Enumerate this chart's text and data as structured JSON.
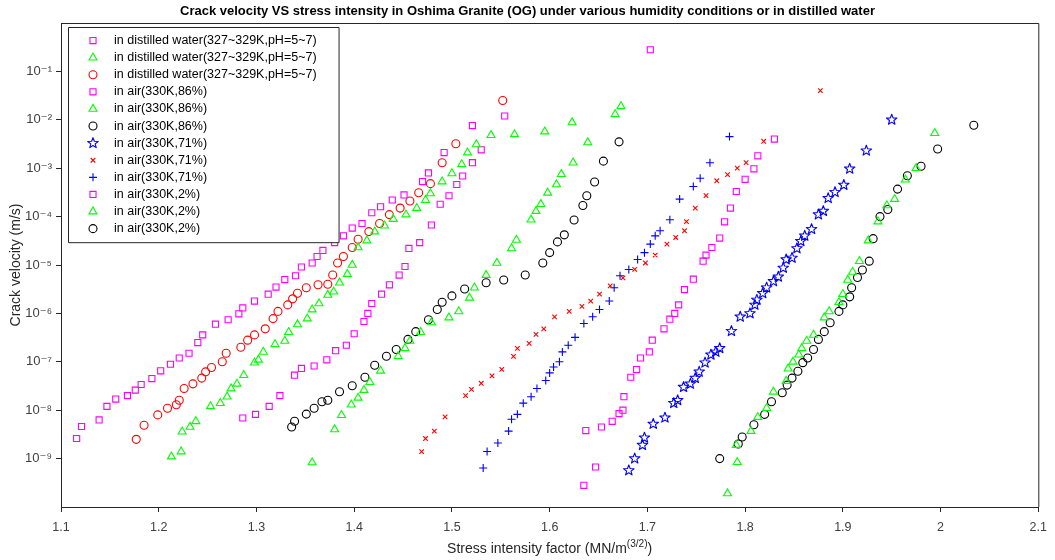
{
  "chart_data": {
    "type": "scatter",
    "title": "Crack velocity VS stress intensity in Oshima Granite (OG) under various humidity conditions or in distilled water",
    "xlabel": "Stress intensity factor (MN/m$^{(3/2)}$)",
    "ylabel": "Crack velocity (m/s)",
    "log": "y",
    "legend": "top left",
    "xlim": [
      1.1,
      2.1
    ],
    "xticks": [
      1.1,
      1.2,
      1.3,
      1.4,
      1.5,
      1.6,
      1.7,
      1.8,
      1.9,
      {
        "value": 2,
        "label": "2"
      },
      2.1
    ],
    "ylim": [
      1e-10,
      1
    ],
    "yticks": [
      {
        "value": 1e-09,
        "label": "10⁻⁹"
      },
      {
        "value": 1e-08,
        "label": "10⁻⁸"
      },
      {
        "value": 1e-07,
        "label": "10⁻⁷"
      },
      {
        "value": 1e-06,
        "label": "10⁻⁶"
      },
      {
        "value": 1e-05,
        "label": "10⁻⁵"
      },
      {
        "value": 0.0001,
        "label": "10⁻⁴"
      },
      {
        "value": 0.001,
        "label": "10⁻³"
      },
      {
        "value": 0.01,
        "label": "10⁻²"
      },
      {
        "value": 0.1,
        "label": "10⁻¹"
      }
    ],
    "series": [
      {
        "name": "in distilled water(327~329K,pH=5~7)",
        "color": "#ff00ff",
        "marker": "square",
        "x": [
          1.116,
          1.121,
          1.139,
          1.147,
          1.156,
          1.168,
          1.176,
          1.182,
          1.193,
          1.202,
          1.212,
          1.221,
          1.231,
          1.24,
          1.245,
          1.258,
          1.271,
          1.282,
          1.286,
          1.298,
          1.312,
          1.32,
          1.329,
          1.34,
          1.346,
          1.357,
          1.362,
          1.368,
          1.38,
          1.389,
          1.398,
          1.408,
          1.418,
          1.427,
          1.439,
          1.451,
          1.47,
          1.476,
          1.492,
          1.521
        ],
        "values": [
          2.6e-09,
          4.6e-09,
          6.3e-09,
          1.2e-08,
          1.7e-08,
          2e-08,
          2.6e-08,
          3.4e-08,
          4.5e-08,
          6.5e-08,
          8.9e-08,
          1.2e-07,
          1.5e-07,
          2.5e-07,
          3.6e-07,
          6e-07,
          7.4e-07,
          9.8e-07,
          1.3e-06,
          1.8e-06,
          2.5e-06,
          3.5e-06,
          5e-06,
          6e-06,
          9.1e-06,
          1.1e-05,
          1.5e-05,
          2e-05,
          2.9e-05,
          4e-05,
          5.8e-05,
          7.2e-05,
          0.00012,
          0.00016,
          0.00022,
          0.00028,
          0.00053,
          0.0008,
          0.0021,
          0.0076
        ]
      },
      {
        "name": "in distilled water(327~329K,pH=5~7)",
        "color": "#00ff00",
        "marker": "triangle",
        "x": [
          1.213,
          1.223,
          1.224,
          1.232,
          1.238,
          1.253,
          1.263,
          1.27,
          1.274,
          1.28,
          1.287,
          1.298,
          1.302,
          1.307,
          1.319,
          1.329,
          1.333,
          1.342,
          1.352,
          1.357,
          1.364,
          1.373,
          1.379,
          1.385,
          1.393,
          1.398,
          1.404,
          1.413,
          1.421,
          1.431,
          1.44,
          1.453,
          1.464,
          1.473,
          1.478,
          1.49,
          1.5,
          1.51,
          1.516,
          1.525,
          1.54,
          1.564,
          1.595
        ],
        "values": [
          1.1e-09,
          1.4e-09,
          3.6e-09,
          4.5e-09,
          5.9e-09,
          1.2e-08,
          1.4e-08,
          1.9e-08,
          2.8e-08,
          3.5e-08,
          5.3e-08,
          9.6e-08,
          1.1e-07,
          1.6e-07,
          2.3e-07,
          2.7e-07,
          4.1e-07,
          5.9e-07,
          7.8e-07,
          1.2e-06,
          1.6e-06,
          2.4e-06,
          2.8e-06,
          4.3e-06,
          6.5e-06,
          1e-05,
          2.3e-05,
          3.2e-05,
          4.9e-05,
          6.5e-05,
          8.9e-05,
          0.00011,
          0.00015,
          0.00022,
          0.0003,
          0.00053,
          0.00078,
          0.0012,
          0.0021,
          0.0031,
          0.0048,
          0.005,
          0.0057
        ]
      },
      {
        "name": "in distilled water(327~329K,pH=5~7)",
        "color": "#ff0000",
        "marker": "circle",
        "x": [
          1.177,
          1.185,
          1.199,
          1.209,
          1.218,
          1.221,
          1.226,
          1.235,
          1.244,
          1.248,
          1.254,
          1.265,
          1.269,
          1.284,
          1.291,
          1.298,
          1.309,
          1.317,
          1.322,
          1.332,
          1.337,
          1.342,
          1.351,
          1.363,
          1.373,
          1.378,
          1.383,
          1.389,
          1.398,
          1.404,
          1.415,
          1.426,
          1.436,
          1.447,
          1.457,
          1.466,
          1.478,
          1.49,
          1.504,
          1.552
        ],
        "values": [
          2.5e-09,
          4.9e-09,
          8e-09,
          1.1e-08,
          1.3e-08,
          1.6e-08,
          2.8e-08,
          3.5e-08,
          4.6e-08,
          6.2e-08,
          7.6e-08,
          1e-07,
          1.5e-07,
          2e-07,
          2.8e-07,
          3.6e-07,
          4.8e-07,
          7.8e-07,
          1.1e-06,
          1.5e-06,
          2e-06,
          2.6e-06,
          3.4e-06,
          3.9e-06,
          4e-06,
          6.2e-06,
          1.1e-05,
          1.5e-05,
          2.3e-05,
          3.4e-05,
          4.9e-05,
          7.2e-05,
          0.00011,
          0.00015,
          0.00021,
          0.00031,
          0.00048,
          0.0013,
          0.0032,
          0.025
        ]
      },
      {
        "name": "in air(330K,86%)",
        "color": "#ff00ff",
        "marker": "square",
        "x": [
          1.286,
          1.299,
          1.313,
          1.324,
          1.339,
          1.346,
          1.359,
          1.372,
          1.381,
          1.392,
          1.4,
          1.41,
          1.414,
          1.418,
          1.428,
          1.436,
          1.446,
          1.452,
          1.456,
          1.467,
          1.479,
          1.488,
          1.497,
          1.505,
          1.511,
          1.521,
          1.53,
          1.554
        ],
        "values": [
          6.9e-09,
          8.2e-09,
          1.2e-08,
          2e-08,
          5.3e-08,
          7.3e-08,
          8.2e-08,
          1.1e-07,
          1.7e-07,
          2.2e-07,
          3.8e-07,
          6.8e-07,
          1e-06,
          1.6e-06,
          2.5e-06,
          3.9e-06,
          6.2e-06,
          9.3e-06,
          2.2e-05,
          2.9e-05,
          6.7e-05,
          0.00018,
          0.00027,
          0.00046,
          0.00069,
          0.0013,
          0.0024,
          0.012
        ]
      },
      {
        "name": "in air(330K,86%)",
        "color": "#00ff00",
        "marker": "triangle",
        "x": [
          1.357,
          1.38,
          1.387,
          1.397,
          1.404,
          1.41,
          1.416,
          1.427,
          1.445,
          1.452,
          1.457,
          1.468,
          1.479,
          1.497,
          1.507,
          1.518,
          1.523,
          1.535,
          1.546,
          1.561,
          1.566,
          1.581,
          1.586,
          1.591,
          1.598,
          1.607,
          1.612,
          1.623,
          1.624,
          1.639,
          1.667,
          1.673
        ],
        "values": [
          8.3e-10,
          4e-09,
          7.9e-09,
          1.3e-08,
          1.8e-08,
          2.6e-08,
          3.8e-08,
          6.5e-08,
          1.3e-07,
          1.9e-07,
          2.7e-07,
          4.1e-07,
          6.5e-07,
          8.2e-07,
          1.1e-06,
          2.1e-06,
          3.4e-06,
          6.2e-06,
          1.1e-05,
          2.2e-05,
          3.3e-05,
          8.6e-05,
          0.00013,
          0.00018,
          0.00031,
          0.00046,
          0.00075,
          0.0088,
          0.0013,
          0.0034,
          0.013,
          0.019
        ]
      },
      {
        "name": "in air(330K,86%)",
        "color": "#000000",
        "marker": "circle",
        "x": [
          1.336,
          1.339,
          1.351,
          1.359,
          1.367,
          1.373,
          1.385,
          1.398,
          1.411,
          1.421,
          1.433,
          1.443,
          1.455,
          1.463,
          1.476,
          1.485,
          1.49,
          1.5,
          1.513,
          1.535,
          1.553,
          1.575,
          1.593,
          1.6,
          1.608,
          1.615,
          1.625,
          1.634,
          1.638,
          1.646,
          1.655,
          1.671
        ],
        "values": [
          4.5e-09,
          5.9e-09,
          8.3e-09,
          1.1e-08,
          1.5e-08,
          1.6e-08,
          2.4e-08,
          3.2e-08,
          4.8e-08,
          8.5e-08,
          1.3e-07,
          1.8e-07,
          2.9e-07,
          4.2e-07,
          7.4e-07,
          1.2e-06,
          1.7e-06,
          2.3e-06,
          3.2e-06,
          4.3e-06,
          4.9e-06,
          6.2e-06,
          1.1e-05,
          1.8e-05,
          3e-05,
          4.2e-05,
          8.5e-05,
          0.00017,
          0.00027,
          0.00052,
          0.0014,
          0.0035
        ]
      },
      {
        "name": "in air(330K,71%)",
        "color": "#0000ff",
        "marker": "star",
        "x": [
          1.681,
          1.687,
          1.695,
          1.697,
          1.706,
          1.718,
          1.727,
          1.731,
          1.737,
          1.744,
          1.749,
          1.753,
          1.759,
          1.765,
          1.77,
          1.774,
          1.786,
          1.795,
          1.805,
          1.81,
          1.812,
          1.818,
          1.822,
          1.829,
          1.834,
          1.839,
          1.842,
          1.848,
          1.853,
          1.857,
          1.861,
          1.868,
          1.875,
          1.88,
          1.885,
          1.892,
          1.901,
          1.907,
          1.924,
          1.95
        ],
        "values": [
          5.7e-10,
          1e-09,
          1.9e-09,
          2.7e-09,
          5.2e-09,
          7e-09,
          1.4e-08,
          1.6e-08,
          3e-08,
          3.5e-08,
          4.6e-08,
          6.2e-08,
          9.6e-08,
          1.4e-07,
          1.6e-07,
          1.9e-07,
          4.3e-07,
          8.5e-07,
          1e-06,
          1.5e-06,
          1.9e-06,
          2.6e-06,
          3.4e-06,
          4.6e-06,
          5.7e-06,
          8.7e-06,
          1.3e-05,
          1.4e-05,
          2.2e-05,
          3.1e-05,
          4e-05,
          5.5e-05,
          0.00011,
          0.00013,
          0.00024,
          0.00032,
          0.00045,
          0.00097,
          0.0023,
          0.01
        ]
      },
      {
        "name": "in air(330K,71%)",
        "color": "#ff0000",
        "marker": "cross",
        "x": [
          1.469,
          1.473,
          1.482,
          1.493,
          1.514,
          1.52,
          1.53,
          1.541,
          1.551,
          1.563,
          1.567,
          1.579,
          1.586,
          1.594,
          1.605,
          1.62,
          1.633,
          1.642,
          1.651,
          1.662,
          1.675,
          1.687,
          1.698,
          1.708,
          1.72,
          1.729,
          1.738,
          1.74,
          1.749,
          1.76,
          1.771,
          1.782,
          1.792,
          1.801,
          1.819,
          1.877
        ],
        "values": [
          1.4e-09,
          2.6e-09,
          3.7e-09,
          7.3e-09,
          2e-08,
          2.7e-08,
          3.6e-08,
          5.1e-08,
          7e-08,
          1.3e-07,
          1.9e-07,
          2.4e-07,
          3.7e-07,
          4.8e-07,
          8.5e-07,
          1.1e-06,
          1.4e-06,
          1.8e-06,
          2.5e-06,
          3.7e-06,
          5.4e-06,
          8.1e-06,
          1.1e-05,
          1.6e-05,
          2.7e-05,
          3.7e-05,
          5.1e-05,
          7.9e-05,
          0.00015,
          0.00027,
          0.00055,
          0.00074,
          0.001,
          0.0013,
          0.0036,
          0.04
        ]
      },
      {
        "name": "in air(330K,71%)",
        "color": "#0000ff",
        "marker": "plus",
        "x": [
          1.532,
          1.536,
          1.547,
          1.558,
          1.561,
          1.567,
          1.573,
          1.581,
          1.587,
          1.596,
          1.6,
          1.604,
          1.61,
          1.613,
          1.619,
          1.626,
          1.635,
          1.644,
          1.651,
          1.661,
          1.666,
          1.672,
          1.681,
          1.69,
          1.697,
          1.703,
          1.708,
          1.713,
          1.723,
          1.733,
          1.747,
          1.754,
          1.764,
          1.784
        ],
        "values": [
          6.4e-10,
          1.4e-09,
          2.1e-09,
          3.7e-09,
          6.5e-09,
          8.2e-09,
          1.4e-08,
          1.9e-08,
          2.8e-08,
          4.1e-08,
          5.9e-08,
          7.8e-08,
          1e-07,
          1.6e-07,
          2.2e-07,
          3.2e-07,
          6.2e-07,
          8.5e-07,
          1.2e-06,
          1.8e-06,
          3.4e-06,
          6e-06,
          8.1e-06,
          1.3e-05,
          1.8e-05,
          2.7e-05,
          4e-05,
          5.1e-05,
          8.6e-05,
          0.00023,
          0.00042,
          0.00062,
          0.0013,
          0.0045
        ]
      },
      {
        "name": "in air(330K,2%)",
        "color": "#ff00ff",
        "marker": "square",
        "x": [
          1.635,
          1.647,
          1.637,
          1.653,
          1.664,
          1.671,
          1.675,
          1.676,
          1.683,
          1.689,
          1.693,
          1.702,
          1.703,
          1.705,
          1.717,
          1.723,
          1.728,
          1.732,
          1.738,
          1.747,
          1.757,
          1.76,
          1.766,
          1.774,
          1.779,
          1.785,
          1.791,
          1.8,
          1.809,
          1.813,
          1.83
        ],
        "values": [
          2.8e-10,
          6.7e-10,
          3.8e-09,
          4.5e-09,
          5.9e-09,
          8.5e-09,
          1e-08,
          1.9e-08,
          4.8e-08,
          6.9e-08,
          1.2e-07,
          1.6e-07,
          0.28,
          2.8e-07,
          4.8e-07,
          7.6e-07,
          1e-06,
          1.5e-06,
          3.1e-06,
          5.1e-06,
          1.2e-05,
          1.6e-05,
          2.3e-05,
          3.6e-05,
          7.8e-05,
          0.00015,
          0.00033,
          0.00059,
          0.00097,
          0.0018,
          0.004
        ]
      },
      {
        "name": "in air(330K,2%)",
        "color": "#00ff00",
        "marker": "triangle",
        "x": [
          1.782,
          1.792,
          1.791,
          1.806,
          1.813,
          1.822,
          1.829,
          1.842,
          1.844,
          1.849,
          1.855,
          1.858,
          1.863,
          1.87,
          1.881,
          1.886,
          1.896,
          1.9,
          1.905,
          1.91,
          1.917,
          1.926,
          1.936,
          1.945,
          1.953,
          1.964,
          1.975,
          1.994
        ],
        "values": [
          1.9e-10,
          8.4e-10,
          1.9e-09,
          3.7e-09,
          7.2e-09,
          1.1e-08,
          2.4e-08,
          4e-08,
          7.2e-08,
          1e-07,
          1.4e-07,
          1.9e-07,
          2.7e-07,
          3.6e-07,
          8.2e-07,
          1.1e-06,
          1.7e-06,
          2.5e-06,
          4.9e-06,
          7.2e-06,
          1.2e-05,
          3.2e-05,
          7.9e-05,
          0.00017,
          0.00023,
          0.00058,
          0.001,
          0.0053
        ]
      },
      {
        "name": "in air(330K,2%)",
        "color": "#000000",
        "marker": "circle",
        "x": [
          1.774,
          1.793,
          1.797,
          1.809,
          1.82,
          1.827,
          1.838,
          1.843,
          1.848,
          1.854,
          1.859,
          1.864,
          1.87,
          1.875,
          1.881,
          1.887,
          1.896,
          1.9,
          1.907,
          1.909,
          1.915,
          1.92,
          1.927,
          1.931,
          1.938,
          1.946,
          1.956,
          1.966,
          1.98,
          1.997,
          2.034
        ],
        "values": [
          1e-09,
          2e-09,
          2.8e-09,
          5e-09,
          8.2e-09,
          1.5e-08,
          2.3e-08,
          3.3e-08,
          4.6e-08,
          6.4e-08,
          9.6e-08,
          1.2e-07,
          1.8e-07,
          2.9e-07,
          4.2e-07,
          6.4e-07,
          1.1e-06,
          1.5e-06,
          2.2e-06,
          3.4e-06,
          5.5e-06,
          7.9e-06,
          1.2e-05,
          3.5e-05,
          0.0001,
          0.00014,
          0.00037,
          0.0007,
          0.0011,
          0.0025,
          0.0077
        ]
      }
    ]
  }
}
